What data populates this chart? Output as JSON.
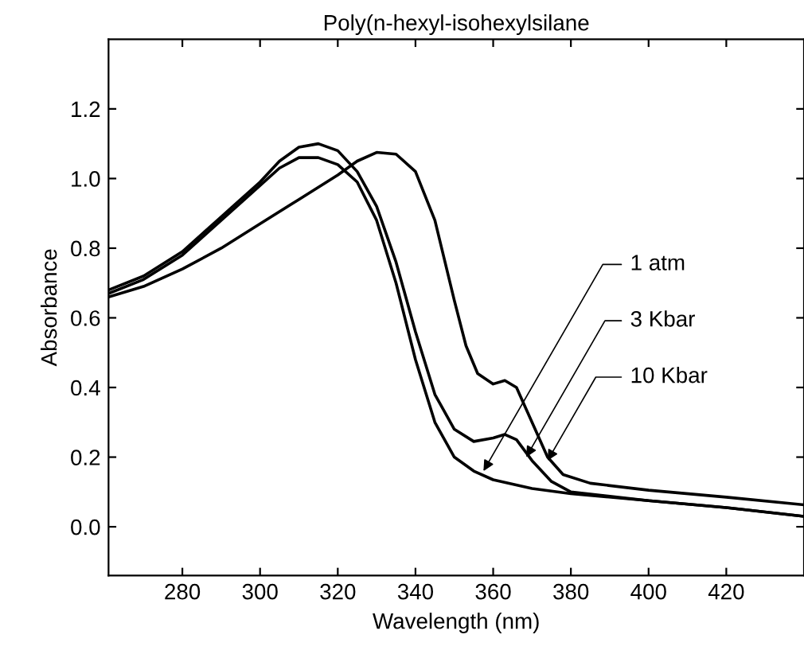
{
  "chart_data": {
    "type": "line",
    "title": "Poly(n-hexyl-isohexylsilane",
    "xlabel": "Wavelength (nm)",
    "ylabel": "Absorbance",
    "xlim": [
      261,
      440
    ],
    "ylim": [
      -0.14,
      1.4
    ],
    "xticks": [
      280,
      300,
      320,
      340,
      360,
      380,
      400,
      420
    ],
    "yticks": [
      {
        "value": 0,
        "label": "0.0"
      },
      {
        "value": 0.2,
        "label": "0.2"
      },
      {
        "value": 0.4,
        "label": "0.4"
      },
      {
        "value": 0.6,
        "label": "0.6"
      },
      {
        "value": 0.8,
        "label": "0.8"
      },
      {
        "value": 1.0,
        "label": "1.0"
      },
      {
        "value": 1.2,
        "label": "1.2"
      }
    ],
    "grid": false,
    "legend": false,
    "marker": "none",
    "line_style": "solid",
    "series": [
      {
        "color": "#000000",
        "x": [
          261,
          270,
          280,
          290,
          300,
          305,
          310,
          315,
          320,
          325,
          330,
          335,
          340,
          345,
          350,
          355,
          360,
          370,
          380,
          400,
          420,
          440
        ],
        "values": [
          0.67,
          0.71,
          0.78,
          0.88,
          0.98,
          1.03,
          1.06,
          1.06,
          1.04,
          0.99,
          0.88,
          0.7,
          0.48,
          0.3,
          0.2,
          0.16,
          0.135,
          0.11,
          0.095,
          0.075,
          0.055,
          0.03
        ]
      },
      {
        "color": "#000000",
        "x": [
          261,
          270,
          280,
          290,
          300,
          305,
          310,
          315,
          320,
          325,
          330,
          335,
          340,
          345,
          350,
          355,
          360,
          363,
          366,
          370,
          375,
          380,
          400,
          420,
          440
        ],
        "values": [
          0.68,
          0.72,
          0.79,
          0.89,
          0.99,
          1.05,
          1.09,
          1.1,
          1.08,
          1.02,
          0.92,
          0.76,
          0.56,
          0.38,
          0.28,
          0.245,
          0.255,
          0.265,
          0.25,
          0.19,
          0.13,
          0.1,
          0.075,
          0.055,
          0.03
        ]
      },
      {
        "color": "#000000",
        "x": [
          261,
          270,
          280,
          290,
          300,
          310,
          320,
          325,
          330,
          335,
          340,
          345,
          350,
          353,
          356,
          360,
          363,
          366,
          370,
          374,
          378,
          385,
          400,
          420,
          440
        ],
        "values": [
          0.66,
          0.69,
          0.74,
          0.8,
          0.87,
          0.94,
          1.01,
          1.05,
          1.075,
          1.07,
          1.02,
          0.88,
          0.65,
          0.52,
          0.44,
          0.41,
          0.42,
          0.4,
          0.3,
          0.2,
          0.15,
          0.125,
          0.105,
          0.085,
          0.063
        ]
      }
    ],
    "annotations": [
      {
        "text": "1 atm",
        "x": 357.5,
        "y": 0.16
      },
      {
        "text": "3 Kbar",
        "x": 368.5,
        "y": 0.2
      },
      {
        "text": "10 Kbar",
        "x": 374,
        "y": 0.19
      }
    ]
  }
}
